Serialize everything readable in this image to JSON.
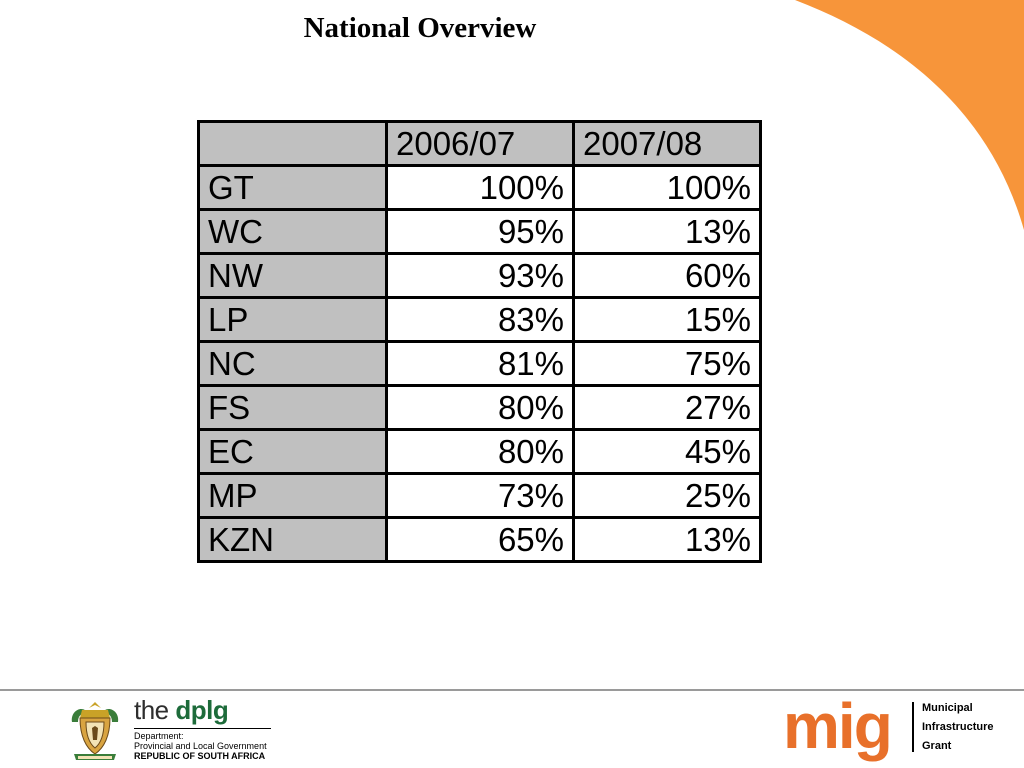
{
  "title": "National Overview",
  "table": {
    "columns": [
      "",
      "2006/07",
      "2007/08"
    ],
    "rows": [
      {
        "province": "GT",
        "y2006_07": "100%",
        "y2007_08": "100%"
      },
      {
        "province": "WC",
        "y2006_07": "95%",
        "y2007_08": "13%"
      },
      {
        "province": "NW",
        "y2006_07": "93%",
        "y2007_08": "60%"
      },
      {
        "province": "LP",
        "y2006_07": "83%",
        "y2007_08": "15%"
      },
      {
        "province": "NC",
        "y2006_07": "81%",
        "y2007_08": "75%"
      },
      {
        "province": "FS",
        "y2006_07": "80%",
        "y2007_08": "27%"
      },
      {
        "province": "EC",
        "y2006_07": "80%",
        "y2007_08": "45%"
      },
      {
        "province": "MP",
        "y2006_07": "73%",
        "y2007_08": "25%"
      },
      {
        "province": "KZN",
        "y2006_07": "65%",
        "y2007_08": "13%"
      }
    ]
  },
  "footer": {
    "dplg": {
      "name_prefix": "the",
      "name_bold": "dplg",
      "line1": "Department:",
      "line2": "Provincial and Local Government",
      "line3": "REPUBLIC OF SOUTH AFRICA"
    },
    "mig": {
      "word": "mig",
      "line1": "Municipal",
      "line2": "Infrastructure",
      "line3": "Grant"
    }
  },
  "colors": {
    "accent_orange": "#f7953a",
    "mig_orange": "#e8702a",
    "header_grey": "#c0c0c0",
    "dplg_green": "#1d6b3a"
  }
}
